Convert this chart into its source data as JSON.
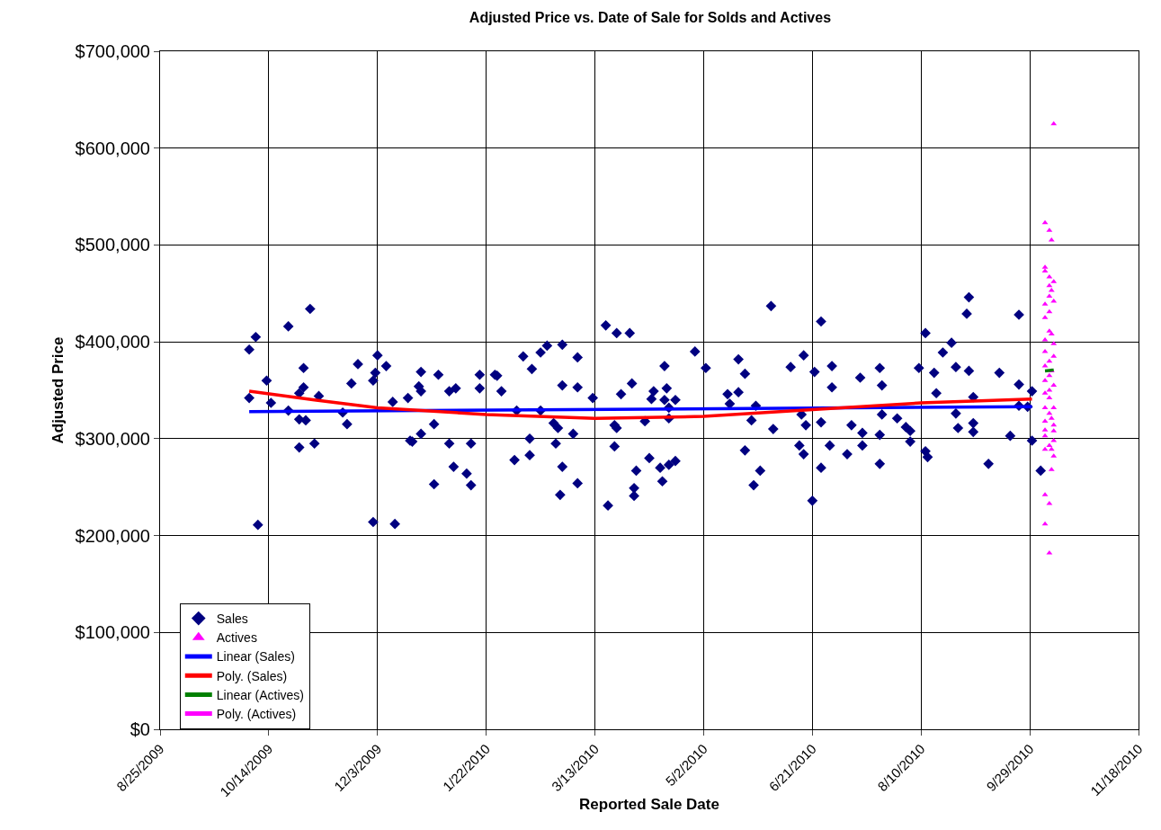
{
  "chart_data": {
    "type": "scatter",
    "title": "Adjusted Price vs. Date of Sale for Solds and Actives",
    "xlabel": "Reported Sale Date",
    "ylabel": "Adjusted Price",
    "xlim": [
      "2009-08-25",
      "2010-11-18"
    ],
    "xticks": [
      {
        "value": "2009-08-25",
        "label": "8/25/2009"
      },
      {
        "value": "2009-10-14",
        "label": "10/14/2009"
      },
      {
        "value": "2009-12-03",
        "label": "12/3/2009"
      },
      {
        "value": "2010-01-22",
        "label": "1/22/2010"
      },
      {
        "value": "2010-03-13",
        "label": "3/13/2010"
      },
      {
        "value": "2010-05-02",
        "label": "5/2/2010"
      },
      {
        "value": "2010-06-21",
        "label": "6/21/2010"
      },
      {
        "value": "2010-08-10",
        "label": "8/10/2010"
      },
      {
        "value": "2010-09-29",
        "label": "9/29/2010"
      },
      {
        "value": "2010-11-18",
        "label": "11/18/2010"
      }
    ],
    "ylim": [
      0,
      700000
    ],
    "yticks": [
      {
        "value": 0,
        "label": "$0"
      },
      {
        "value": 100000,
        "label": "$100,000"
      },
      {
        "value": 200000,
        "label": "$200,000"
      },
      {
        "value": 300000,
        "label": "$300,000"
      },
      {
        "value": 400000,
        "label": "$400,000"
      },
      {
        "value": 500000,
        "label": "$500,000"
      },
      {
        "value": 600000,
        "label": "$600,000"
      },
      {
        "value": 700000,
        "label": "$700,000"
      }
    ],
    "grid": true,
    "legend": "bottom left",
    "series": [
      {
        "name": "Sales",
        "type": "scatter",
        "marker": "diamond",
        "color": "#000080",
        "x": [
          "2009-10-05",
          "2009-10-08",
          "2009-10-05",
          "2009-10-09",
          "2009-10-13",
          "2009-10-15",
          "2009-10-23",
          "2009-11-02",
          "2009-10-23",
          "2009-10-30",
          "2009-10-30",
          "2009-10-28",
          "2009-10-28",
          "2009-10-31",
          "2009-10-28",
          "2009-11-04",
          "2009-11-06",
          "2009-11-17",
          "2009-11-19",
          "2009-11-21",
          "2009-11-24",
          "2009-12-01",
          "2009-12-02",
          "2009-12-01",
          "2009-12-03",
          "2009-12-07",
          "2009-12-10",
          "2009-12-11",
          "2009-12-17",
          "2009-12-18",
          "2009-12-19",
          "2009-12-23",
          "2009-12-22",
          "2009-12-23",
          "2009-12-23",
          "2009-12-29",
          "2009-12-29",
          "2009-12-31",
          "2010-01-05",
          "2010-01-08",
          "2010-01-05",
          "2010-01-07",
          "2010-01-13",
          "2010-01-15",
          "2010-01-15",
          "2010-01-19",
          "2010-01-19",
          "2010-01-26",
          "2010-01-27",
          "2010-01-29",
          "2010-02-04",
          "2010-02-05",
          "2010-02-08",
          "2010-02-11",
          "2010-02-11",
          "2010-02-12",
          "2010-02-16",
          "2010-02-19",
          "2010-02-16",
          "2010-02-22",
          "2010-02-24",
          "2010-02-23",
          "2010-02-26",
          "2010-02-26",
          "2010-02-26",
          "2010-02-25",
          "2010-03-03",
          "2010-03-05",
          "2010-03-05",
          "2010-03-05",
          "2010-03-12",
          "2010-03-18",
          "2010-03-23",
          "2010-03-29",
          "2010-03-19",
          "2010-03-22",
          "2010-03-23",
          "2010-03-22",
          "2010-03-25",
          "2010-03-30",
          "2010-04-01",
          "2010-03-31",
          "2010-03-31",
          "2010-04-05",
          "2010-04-07",
          "2010-04-08",
          "2010-04-09",
          "2010-04-14",
          "2010-04-12",
          "2010-04-13",
          "2010-04-14",
          "2010-04-15",
          "2010-04-16",
          "2010-04-16",
          "2010-04-16",
          "2010-04-19",
          "2010-04-19",
          "2010-04-28",
          "2010-05-03",
          "2010-05-13",
          "2010-05-14",
          "2010-05-18",
          "2010-05-18",
          "2010-05-21",
          "2010-05-21",
          "2010-05-24",
          "2010-05-25",
          "2010-05-26",
          "2010-05-28",
          "2010-06-02",
          "2010-06-03",
          "2010-06-11",
          "2010-06-15",
          "2010-06-16",
          "2010-06-17",
          "2010-06-17",
          "2010-06-18",
          "2010-06-21",
          "2010-06-22",
          "2010-06-25",
          "2010-06-25",
          "2010-06-25",
          "2010-06-29",
          "2010-06-30",
          "2010-06-30",
          "2010-07-07",
          "2010-07-09",
          "2010-07-13",
          "2010-07-14",
          "2010-07-14",
          "2010-07-22",
          "2010-07-22",
          "2010-07-22",
          "2010-07-23",
          "2010-07-23",
          "2010-07-30",
          "2010-08-03",
          "2010-08-05",
          "2010-08-05",
          "2010-08-09",
          "2010-08-12",
          "2010-08-12",
          "2010-08-13",
          "2010-08-16",
          "2010-08-17",
          "2010-08-20",
          "2010-08-24",
          "2010-08-26",
          "2010-08-26",
          "2010-08-27",
          "2010-08-31",
          "2010-09-01",
          "2010-09-01",
          "2010-09-03",
          "2010-09-03",
          "2010-09-03",
          "2010-09-10",
          "2010-09-15",
          "2010-09-20",
          "2010-09-24",
          "2010-09-24",
          "2010-09-24",
          "2010-09-28",
          "2010-09-30",
          "2010-09-30",
          "2010-10-04"
        ],
        "values": [
          392000,
          405000,
          342000,
          211000,
          360000,
          337000,
          416000,
          434000,
          329000,
          373000,
          353000,
          347000,
          320000,
          319000,
          291000,
          295000,
          344000,
          327000,
          315000,
          357000,
          377000,
          360000,
          368000,
          214000,
          386000,
          375000,
          338000,
          212000,
          342000,
          298000,
          297000,
          369000,
          354000,
          349000,
          305000,
          315000,
          253000,
          366000,
          349000,
          352000,
          295000,
          271000,
          264000,
          252000,
          295000,
          366000,
          352000,
          366000,
          365000,
          349000,
          278000,
          329000,
          385000,
          300000,
          283000,
          372000,
          389000,
          396000,
          329000,
          316000,
          311000,
          295000,
          397000,
          355000,
          271000,
          242000,
          305000,
          384000,
          353000,
          254000,
          342000,
          417000,
          409000,
          409000,
          231000,
          314000,
          311000,
          292000,
          346000,
          357000,
          267000,
          249000,
          241000,
          318000,
          280000,
          341000,
          349000,
          375000,
          270000,
          256000,
          340000,
          352000,
          332000,
          321000,
          273000,
          340000,
          277000,
          390000,
          373000,
          346000,
          336000,
          382000,
          348000,
          367000,
          288000,
          319000,
          252000,
          334000,
          267000,
          437000,
          310000,
          374000,
          293000,
          325000,
          284000,
          386000,
          314000,
          236000,
          369000,
          421000,
          317000,
          270000,
          293000,
          375000,
          353000,
          284000,
          314000,
          363000,
          306000,
          293000,
          373000,
          304000,
          274000,
          355000,
          325000,
          321000,
          312000,
          308000,
          297000,
          373000,
          409000,
          287000,
          281000,
          368000,
          347000,
          389000,
          399000,
          374000,
          326000,
          311000,
          429000,
          446000,
          370000,
          343000,
          316000,
          307000,
          274000,
          368000,
          303000,
          428000,
          356000,
          334000,
          333000,
          349000,
          298000,
          267000
        ]
      },
      {
        "name": "Actives",
        "type": "scatter",
        "marker": "triangle",
        "color": "#ff00ff",
        "x": [
          "2010-10-10",
          "2010-10-06",
          "2010-10-08",
          "2010-10-09",
          "2010-10-06",
          "2010-10-06",
          "2010-10-08",
          "2010-10-10",
          "2010-10-08",
          "2010-10-09",
          "2010-10-08",
          "2010-10-10",
          "2010-10-06",
          "2010-10-08",
          "2010-10-06",
          "2010-10-08",
          "2010-10-09",
          "2010-10-06",
          "2010-10-10",
          "2010-10-06",
          "2010-10-10",
          "2010-10-08",
          "2010-10-06",
          "2010-10-09",
          "2010-10-08",
          "2010-10-06",
          "2010-10-10",
          "2010-10-08",
          "2010-10-06",
          "2010-10-08",
          "2010-10-06",
          "2010-10-10",
          "2010-10-08",
          "2010-10-09",
          "2010-10-06",
          "2010-10-10",
          "2010-10-06",
          "2010-10-10",
          "2010-10-06",
          "2010-10-10",
          "2010-10-08",
          "2010-10-06",
          "2010-10-09",
          "2010-10-10",
          "2010-10-09",
          "2010-10-06",
          "2010-10-08",
          "2010-10-06",
          "2010-10-08"
        ],
        "values": [
          625000,
          523000,
          515000,
          505000,
          477000,
          473000,
          467000,
          462000,
          458000,
          453000,
          447000,
          442000,
          439000,
          431000,
          425000,
          411000,
          408000,
          402000,
          398000,
          390000,
          385000,
          380000,
          375000,
          370000,
          365000,
          360000,
          355000,
          350000,
          347000,
          342000,
          332000,
          332000,
          326000,
          321000,
          318000,
          314000,
          309000,
          308000,
          303000,
          298000,
          293000,
          289000,
          289000,
          282000,
          268000,
          242000,
          233000,
          212000,
          182000
        ]
      },
      {
        "name": "Linear (Sales)",
        "type": "line",
        "color": "#0000ff",
        "x": [
          "2009-10-05",
          "2010-09-30"
        ],
        "values": [
          328000,
          333000
        ]
      },
      {
        "name": "Poly. (Sales)",
        "type": "line",
        "color": "#ff0000",
        "x": [
          "2009-10-05",
          "2009-11-04",
          "2009-12-03",
          "2010-01-22",
          "2010-03-13",
          "2010-05-02",
          "2010-06-21",
          "2010-08-10",
          "2010-09-30"
        ],
        "values": [
          349000,
          340000,
          332000,
          325000,
          321000,
          323000,
          330000,
          337000,
          341000
        ]
      },
      {
        "name": "Linear (Actives)",
        "type": "line",
        "color": "#008000",
        "x": [
          "2010-10-06",
          "2010-10-10"
        ],
        "values": [
          370000,
          371000
        ]
      },
      {
        "name": "Poly. (Actives)",
        "type": "line",
        "color": "#ff00ff"
      }
    ]
  }
}
